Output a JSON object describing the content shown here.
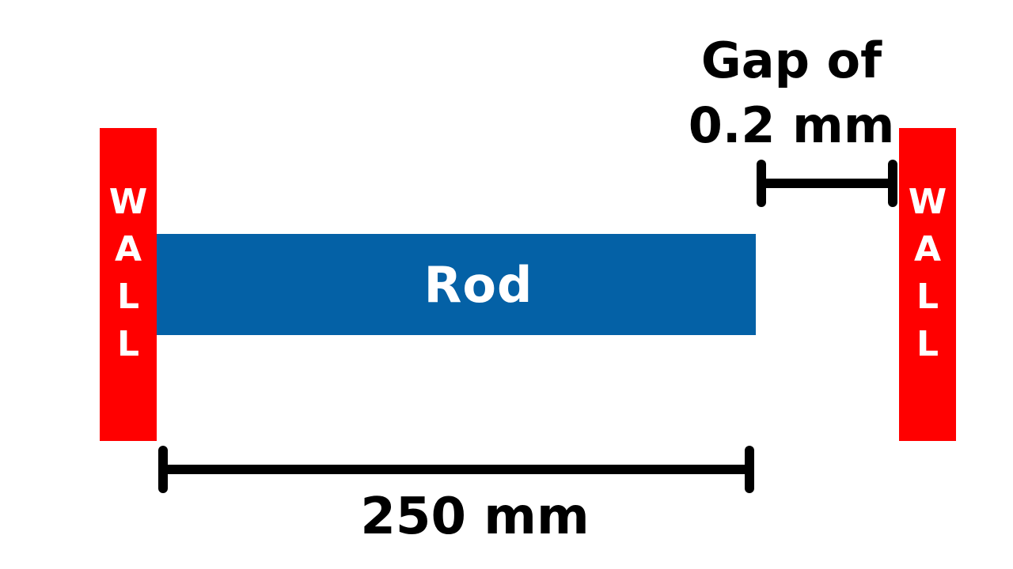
{
  "walls": {
    "left": {
      "letters": [
        "W",
        "A",
        "L",
        "L"
      ]
    },
    "right": {
      "letters": [
        "W",
        "A",
        "L",
        "L"
      ]
    },
    "color": "#ff0000"
  },
  "rod": {
    "label": "Rod",
    "color": "#0461a6"
  },
  "gap": {
    "line1": "Gap of",
    "line2": "0.2 mm"
  },
  "length": {
    "label": "250 mm"
  },
  "dimension_color": "#000000"
}
